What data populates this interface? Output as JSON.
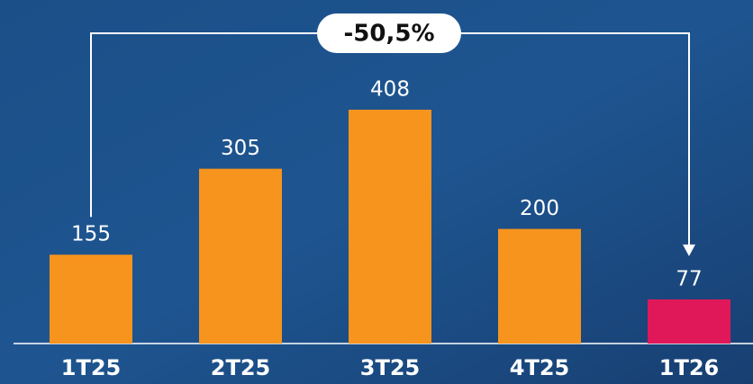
{
  "chart_data": {
    "type": "bar",
    "categories": [
      "1T25",
      "2T25",
      "3T25",
      "4T25",
      "1T26"
    ],
    "values": [
      155,
      305,
      408,
      200,
      77
    ],
    "colors": [
      "#f7941d",
      "#f7941d",
      "#f7941d",
      "#f7941d",
      "#e0185a"
    ],
    "annotation": "-50,5%"
  }
}
